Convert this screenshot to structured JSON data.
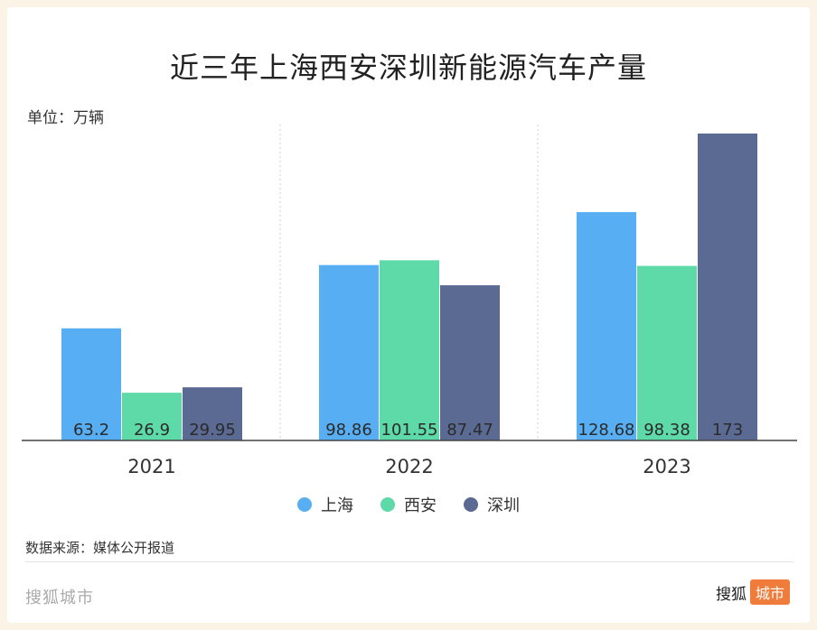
{
  "title": "近三年上海西安深圳新能源汽车产量",
  "unit_label": "单位：万辆",
  "source": "数据来源：媒体公开报道",
  "footer": {
    "left": "搜狐城市",
    "right_text": "搜狐",
    "right_badge": "城市"
  },
  "colors": {
    "上海": "#58aef2",
    "西安": "#5ed9a8",
    "深圳": "#5a6a93"
  },
  "chart_data": {
    "type": "bar",
    "title": "近三年上海西安深圳新能源汽车产量",
    "ylabel": "单位：万辆",
    "xlabel": "",
    "categories": [
      "2021",
      "2022",
      "2023"
    ],
    "series": [
      {
        "name": "上海",
        "values": [
          63.2,
          98.86,
          128.68
        ],
        "color": "#58aef2"
      },
      {
        "name": "西安",
        "values": [
          26.9,
          101.55,
          98.38
        ],
        "color": "#5ed9a8"
      },
      {
        "name": "深圳",
        "values": [
          29.95,
          87.47,
          173
        ],
        "color": "#5a6a93"
      }
    ],
    "ylim": [
      0,
      175
    ],
    "grid": false,
    "legend": "bottom-center"
  }
}
